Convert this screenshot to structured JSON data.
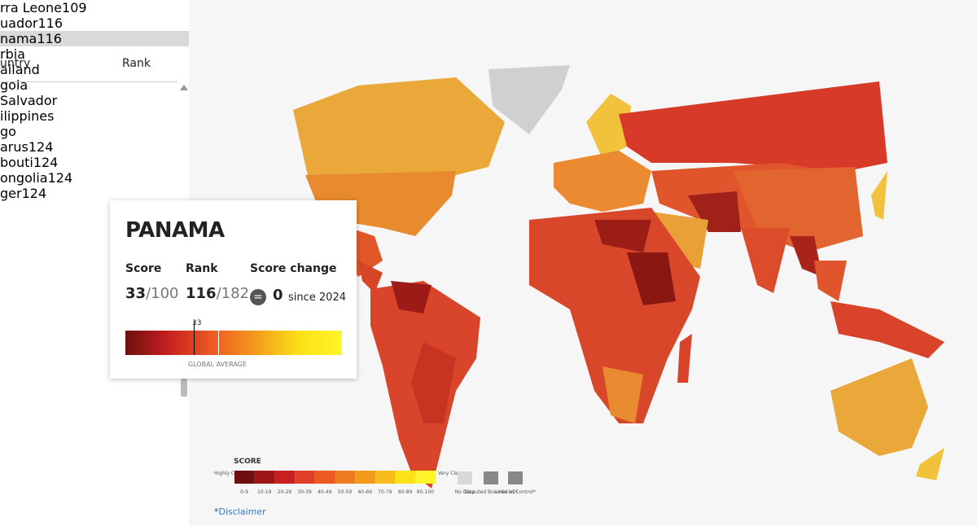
{
  "table": {
    "header": [
      "untry",
      "Rank"
    ],
    "rows": [
      [
        "rra Leone",
        "109"
      ],
      [
        "uador",
        "116"
      ],
      [
        "nama",
        "116"
      ],
      [
        "rbia"
      ],
      [
        "ailand"
      ],
      [
        "gola"
      ],
      [
        "Salvador"
      ],
      [
        "ilippines"
      ],
      [
        "go"
      ],
      [
        "arus",
        "124"
      ],
      [
        "bouti",
        "124"
      ],
      [
        "ongolia",
        "124"
      ],
      [
        "ger",
        "124"
      ]
    ]
  },
  "tooltip": {
    "country": "PANAMA",
    "score_label": "Score",
    "rank_label": "Rank",
    "change_label": "Score change",
    "score": "33",
    "score_max": "/100",
    "rank": "116",
    "rank_max": "/182",
    "change": "0",
    "since": "since 2024",
    "marker": "33",
    "average_label": "GLOBAL AVERAGE"
  },
  "legend": {
    "title": "SCORE",
    "low": "Highly Corrupt",
    "high": "Very Clean",
    "bins": [
      "0-9",
      "10-19",
      "20-29",
      "30-39",
      "40-49",
      "50-59",
      "60-69",
      "70-79",
      "80-89",
      "90-100"
    ],
    "no_data": "No Data",
    "disputed": "Disputed Boundaries*",
    "lines": "Lines of Control*"
  },
  "disclaimer": {
    "star": "*",
    "link": "Disclaimer"
  }
}
